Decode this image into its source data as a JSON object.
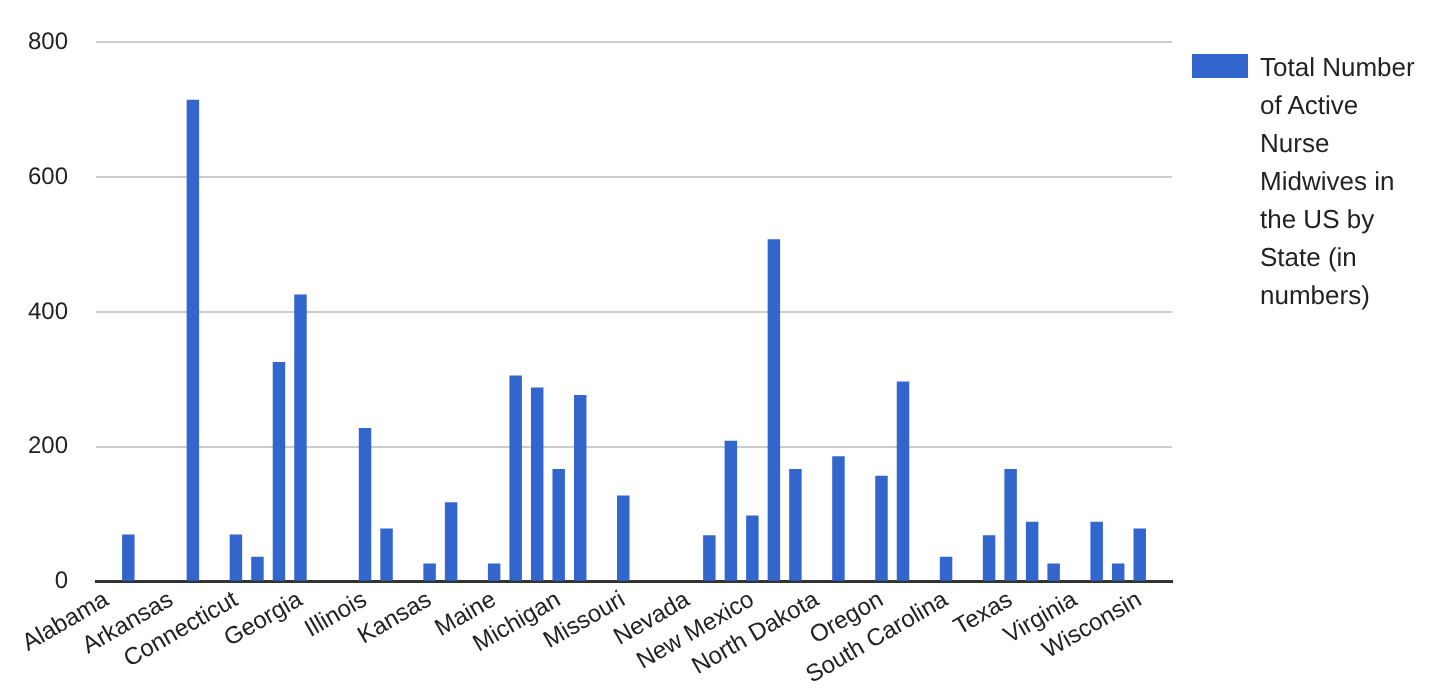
{
  "chart_data": {
    "type": "bar",
    "categories": [
      "Alabama",
      null,
      null,
      "Arkansas",
      null,
      null,
      "Connecticut",
      null,
      null,
      "Georgia",
      null,
      null,
      "Illinois",
      null,
      null,
      "Kansas",
      null,
      null,
      "Maine",
      null,
      null,
      "Michigan",
      null,
      null,
      "Missouri",
      null,
      null,
      "Nevada",
      null,
      null,
      "New Mexico",
      null,
      null,
      "North Dakota",
      null,
      null,
      "Oregon",
      null,
      null,
      "South Carolina",
      null,
      null,
      "Texas",
      null,
      null,
      "Virginia",
      null,
      null,
      "Wisconsin",
      null
    ],
    "series": [
      {
        "name": "Total Number of Active Nurse Midwives in the US by State (in numbers)",
        "color": "#3366cc",
        "values": [
          null,
          70,
          null,
          null,
          715,
          null,
          70,
          37,
          326,
          426,
          null,
          null,
          228,
          79,
          null,
          27,
          118,
          null,
          27,
          306,
          288,
          167,
          277,
          null,
          128,
          null,
          null,
          null,
          69,
          209,
          98,
          508,
          167,
          null,
          186,
          null,
          157,
          297,
          null,
          37,
          null,
          69,
          167,
          89,
          27,
          null,
          89,
          27,
          79,
          null
        ]
      }
    ],
    "ylim": [
      0,
      800
    ],
    "yticks": [
      0,
      200,
      400,
      600,
      800
    ],
    "grid": "y",
    "legend": "right"
  }
}
